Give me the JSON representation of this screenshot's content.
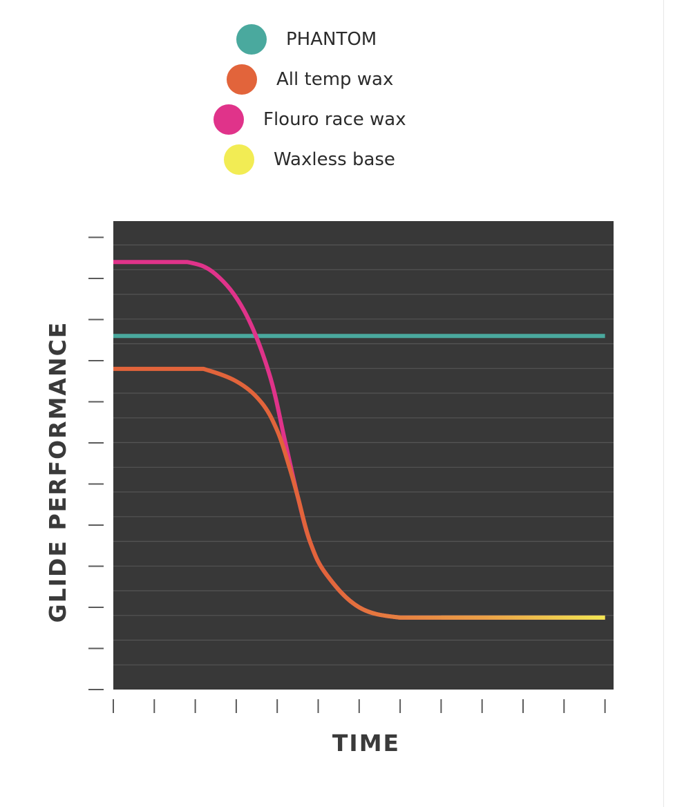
{
  "chart_data": {
    "type": "line",
    "xlabel": "TIME",
    "ylabel": "GLIDE PERFORMANCE",
    "x_ticks_count": 13,
    "y_ticks_count": 12,
    "xlim": [
      0,
      12
    ],
    "ylim": [
      0,
      12
    ],
    "grid": true,
    "legend_position": "top",
    "background_color": "#383838",
    "grid_color": "#555555",
    "series": [
      {
        "name": "PHANTOM",
        "color": "#4aa99e",
        "x": [
          0,
          12
        ],
        "y": [
          8.6,
          8.6
        ]
      },
      {
        "name": "All temp wax",
        "color": "#e2643b",
        "x": [
          0,
          1,
          2,
          2.2,
          3,
          3.6,
          4,
          4.3,
          4.5,
          4.8,
          5.2,
          6,
          7,
          8,
          9,
          10,
          11,
          12
        ],
        "y": [
          7.8,
          7.8,
          7.8,
          7.8,
          7.5,
          7.0,
          6.3,
          5.4,
          4.7,
          3.6,
          2.8,
          2.0,
          1.75,
          1.75,
          1.75,
          1.75,
          1.75,
          1.75
        ]
      },
      {
        "name": "Flouro race wax",
        "color": "#e0338a",
        "x": [
          0,
          1,
          1.8,
          2.5,
          3.2,
          3.8,
          4.2,
          4.5,
          4.8,
          5.2,
          6,
          7,
          8,
          9,
          10,
          11,
          12
        ],
        "y": [
          10.4,
          10.4,
          10.4,
          10.1,
          9.2,
          7.7,
          6.0,
          4.7,
          3.6,
          2.8,
          2.0,
          1.75,
          1.75,
          1.75,
          1.75,
          1.75,
          1.75
        ]
      },
      {
        "name": "Waxless base",
        "color": "#f2ec54",
        "x": [
          8,
          9,
          10,
          11,
          12
        ],
        "y": [
          1.75,
          1.75,
          1.75,
          1.75,
          1.75
        ]
      }
    ]
  }
}
